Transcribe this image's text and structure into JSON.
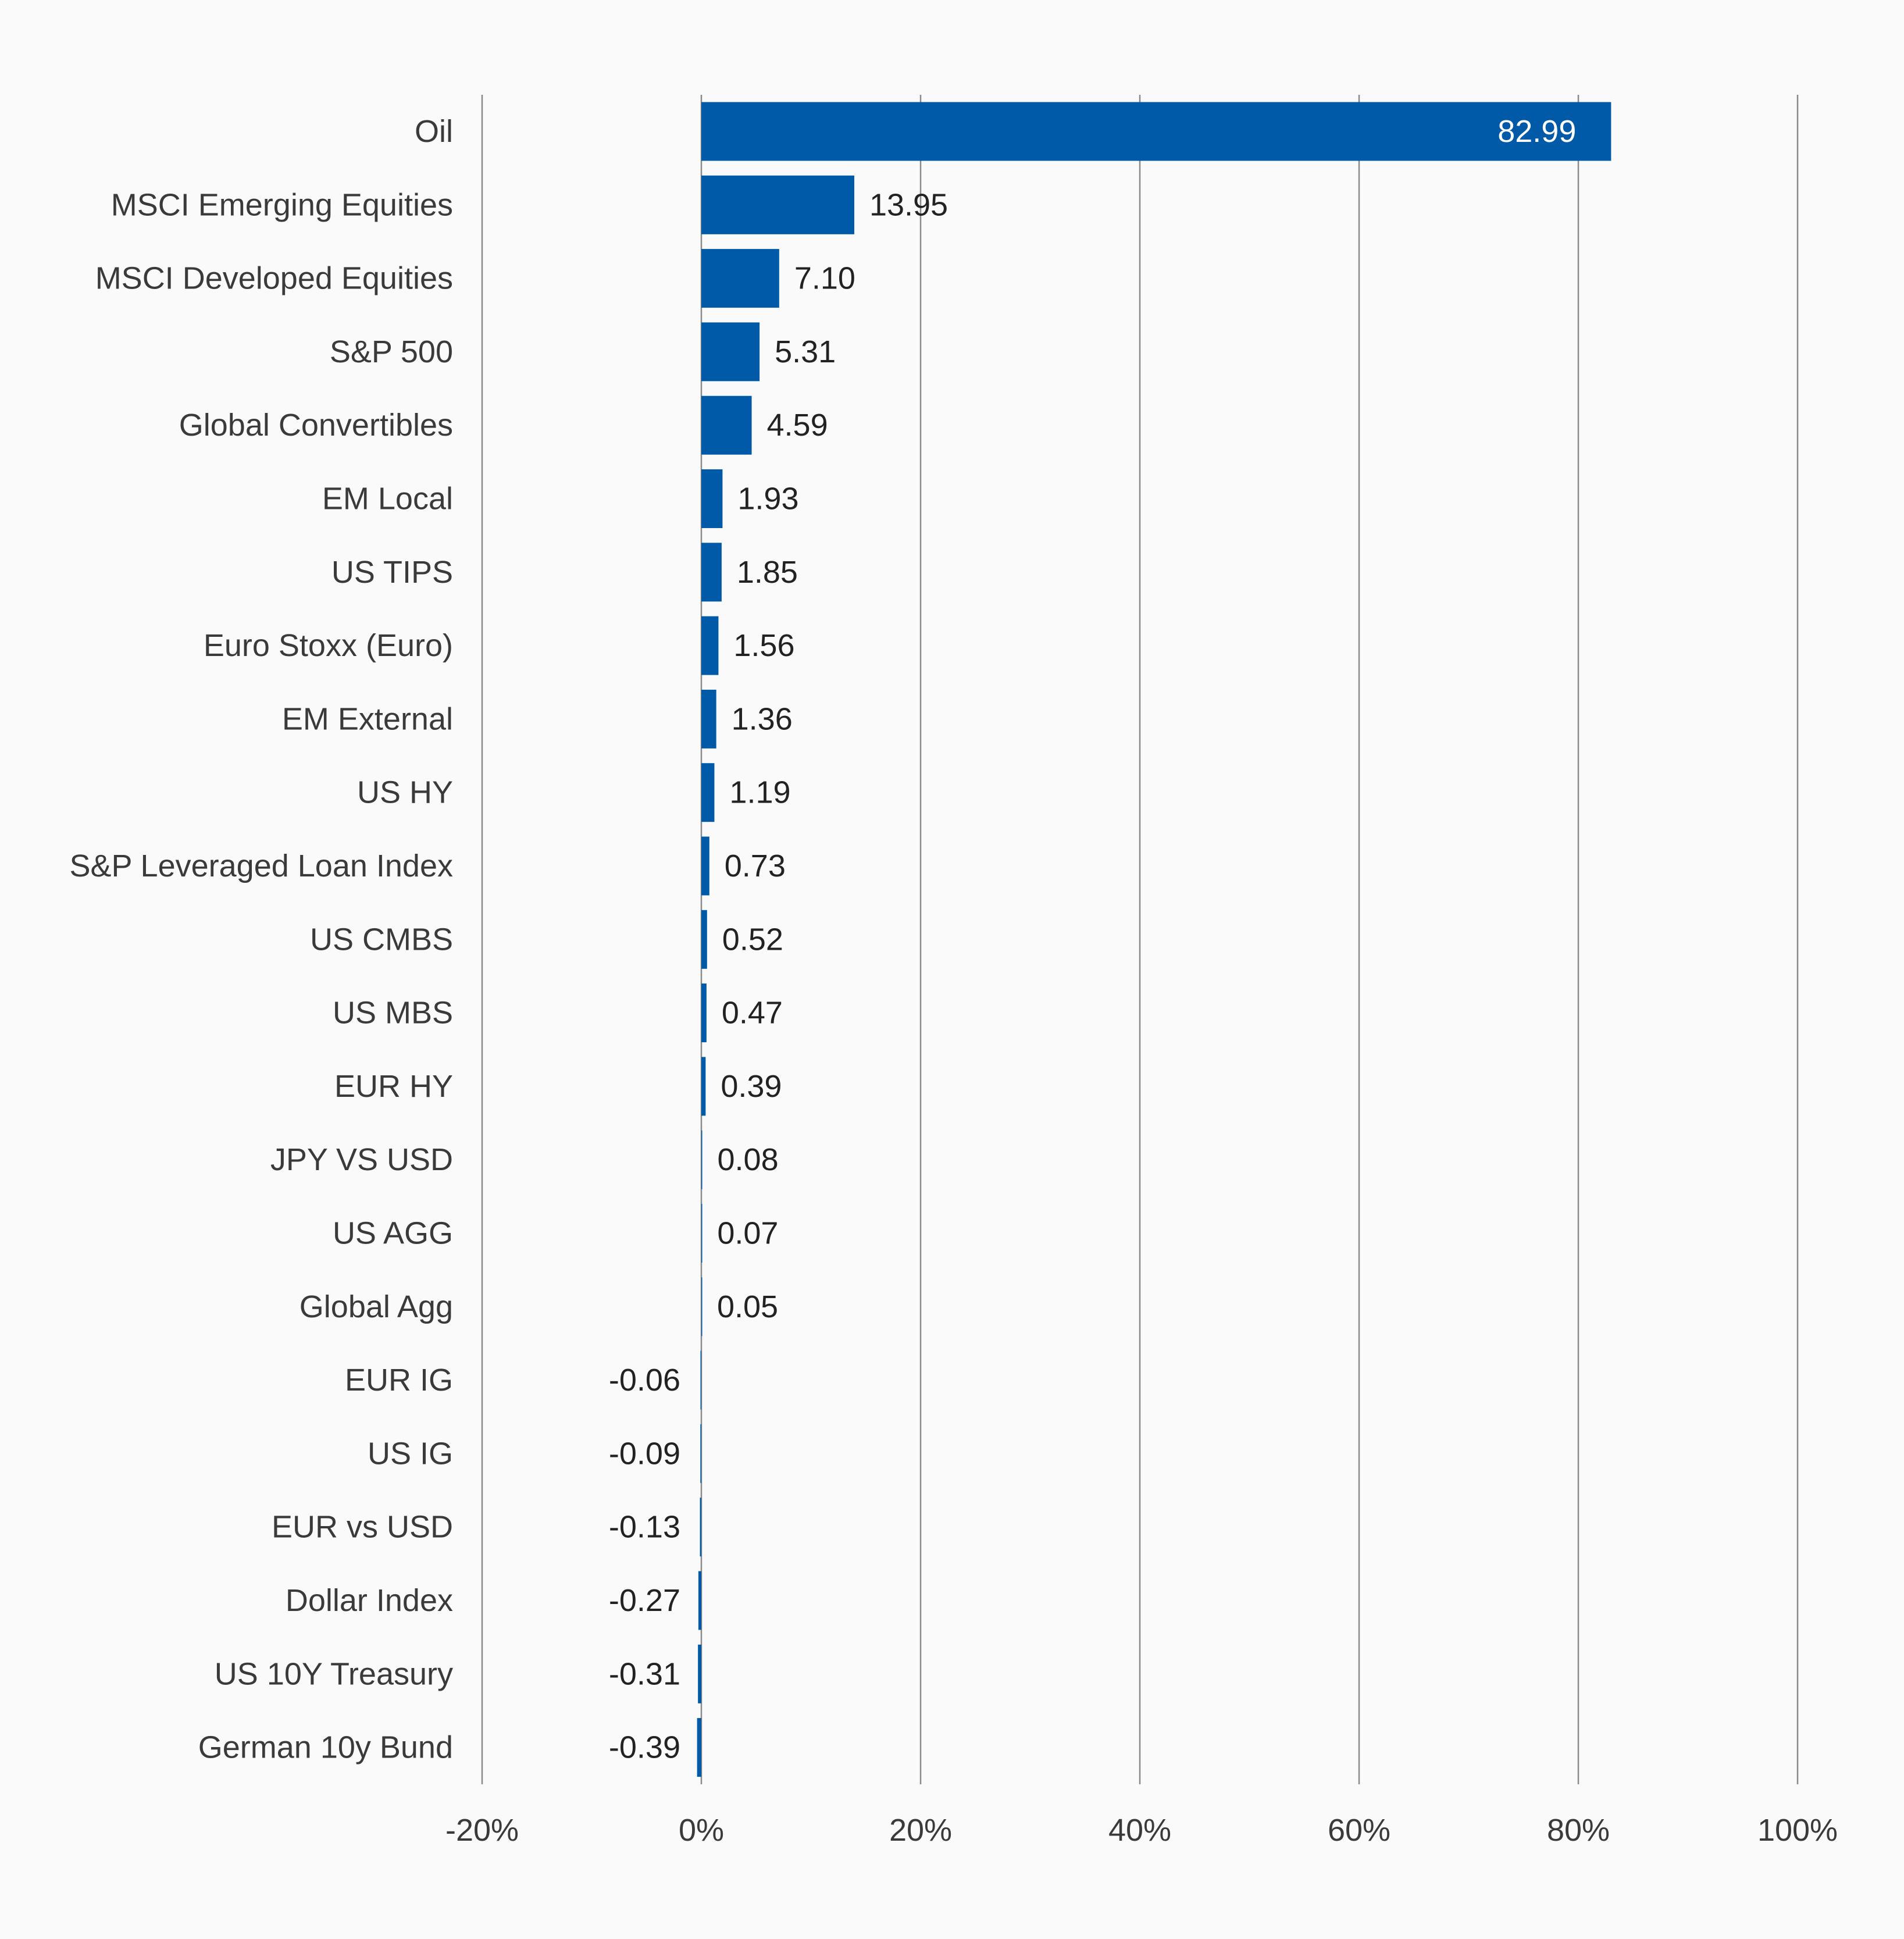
{
  "chart_data": {
    "type": "bar",
    "orientation": "horizontal",
    "categories": [
      "Oil",
      "MSCI Emerging Equities",
      "MSCI Developed Equities",
      "S&P 500",
      "Global Convertibles",
      "EM Local",
      "US TIPS",
      "Euro Stoxx (Euro)",
      "EM External",
      "US HY",
      "S&P Leveraged Loan Index",
      "US CMBS",
      "US MBS",
      "EUR HY",
      "JPY VS USD",
      "US AGG",
      "Global Agg",
      "EUR IG",
      "US IG",
      "EUR vs USD",
      "Dollar Index",
      "US 10Y Treasury",
      "German 10y Bund"
    ],
    "values": [
      82.99,
      13.95,
      7.1,
      5.31,
      4.59,
      1.93,
      1.85,
      1.56,
      1.36,
      1.19,
      0.73,
      0.52,
      0.47,
      0.39,
      0.08,
      0.07,
      0.05,
      -0.06,
      -0.09,
      -0.13,
      -0.27,
      -0.31,
      -0.39
    ],
    "value_labels": [
      "82.99",
      "13.95",
      "7.10",
      "5.31",
      "4.59",
      "1.93",
      "1.85",
      "1.56",
      "1.36",
      "1.19",
      "0.73",
      "0.52",
      "0.47",
      "0.39",
      "0.08",
      "0.07",
      "0.05",
      "-0.06",
      "-0.09",
      "-0.13",
      "-0.27",
      "-0.31",
      "-0.39"
    ],
    "xlim": [
      -20,
      100
    ],
    "xticks": [
      -20,
      0,
      20,
      40,
      60,
      80,
      100
    ],
    "xtick_labels": [
      "-20%",
      "0%",
      "20%",
      "40%",
      "60%",
      "80%",
      "100%"
    ],
    "grid": "vertical",
    "bar_color": "#005aa7",
    "title": "",
    "xlabel": "",
    "ylabel": ""
  }
}
